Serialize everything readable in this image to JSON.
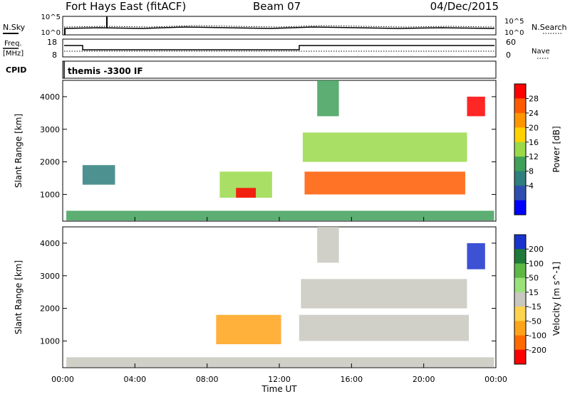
{
  "header": {
    "station": "Fort Hays East (fitACF)",
    "beam": "Beam 07",
    "date": "04/Dec/2015"
  },
  "noise_panel": {
    "left_label": "N.Sky",
    "left_ticks": [
      "10^5",
      "10^0"
    ],
    "right_label": "N.Search",
    "right_ticks": [
      "10^5",
      "10^0"
    ]
  },
  "freq_panel": {
    "left_label_line1": "Freq.",
    "left_label_line2": "[MHz]",
    "left_ticks": [
      "18",
      "8"
    ],
    "right_label": "Nave",
    "right_ticks": [
      "60",
      "0"
    ]
  },
  "cpid_panel": {
    "label": "CPID",
    "value": "themis -3300 IF"
  },
  "power_colorbar": {
    "label": "Power [dB]",
    "ticks": [
      "28",
      "24",
      "20",
      "16",
      "12",
      "8",
      "4"
    ],
    "colors": [
      "#ff0000",
      "#ff5a00",
      "#ff9600",
      "#ffd200",
      "#9ad94a",
      "#3fa05a",
      "#2e7f7d",
      "#2f4fb0",
      "#0000ff"
    ]
  },
  "velocity_colorbar": {
    "label": "Velocity [m s^-1]",
    "ticks": [
      "200",
      "100",
      "50",
      "15",
      "-15",
      "-50",
      "-100",
      "-200"
    ],
    "colors": [
      "#1a33cc",
      "#1f7a3a",
      "#5db845",
      "#9ae27a",
      "#c8c8c0",
      "#ffd34d",
      "#ffa31a",
      "#ff6a00",
      "#ff0000"
    ]
  },
  "axes": {
    "ylabel": "Slant Range [km]",
    "xlabel": "Time UT",
    "yticks": [
      "1000",
      "2000",
      "3000",
      "4000"
    ],
    "xticks": [
      "00:00",
      "04:00",
      "08:00",
      "12:00",
      "16:00",
      "20:00",
      "00:00"
    ]
  },
  "chart_data": [
    {
      "type": "heatmap",
      "title": "Power",
      "xlabel": "Time UT",
      "ylabel": "Slant Range [km]",
      "x_unit": "hours UT",
      "xlim": [
        0,
        24
      ],
      "ylim": [
        180,
        4500
      ],
      "colorbar": {
        "label": "Power [dB]",
        "range": [
          0,
          30
        ]
      },
      "regions": [
        {
          "x": [
            0.2,
            23.9
          ],
          "y": [
            200,
            500
          ],
          "value": 10
        },
        {
          "x": [
            1.1,
            2.9
          ],
          "y": [
            1300,
            1900
          ],
          "value": 8
        },
        {
          "x": [
            8.7,
            11.6
          ],
          "y": [
            900,
            1700
          ],
          "value": 15
        },
        {
          "x": [
            9.6,
            10.7
          ],
          "y": [
            900,
            1200
          ],
          "value": 27
        },
        {
          "x": [
            13.4,
            22.3
          ],
          "y": [
            1000,
            1700
          ],
          "value": 26
        },
        {
          "x": [
            13.3,
            22.4
          ],
          "y": [
            2000,
            2900
          ],
          "value": 14
        },
        {
          "x": [
            14.1,
            15.3
          ],
          "y": [
            3400,
            4500
          ],
          "value": 12
        },
        {
          "x": [
            22.4,
            23.4
          ],
          "y": [
            3400,
            4000
          ],
          "value": 28
        }
      ]
    },
    {
      "type": "heatmap",
      "title": "Velocity",
      "xlabel": "Time UT",
      "ylabel": "Slant Range [km]",
      "x_unit": "hours UT",
      "xlim": [
        0,
        24
      ],
      "ylim": [
        180,
        4500
      ],
      "colorbar": {
        "label": "Velocity [m s^-1]",
        "range": [
          -200,
          200
        ]
      },
      "regions": [
        {
          "x": [
            0.2,
            23.9
          ],
          "y": [
            200,
            500
          ],
          "value": 20
        },
        {
          "x": [
            8.5,
            12.1
          ],
          "y": [
            900,
            1800
          ],
          "value": -70
        },
        {
          "x": [
            13.1,
            22.5
          ],
          "y": [
            1000,
            1800
          ],
          "value": 0
        },
        {
          "x": [
            13.2,
            22.4
          ],
          "y": [
            2000,
            2900
          ],
          "value": 0
        },
        {
          "x": [
            14.1,
            15.3
          ],
          "y": [
            3400,
            4500
          ],
          "value": 0
        },
        {
          "x": [
            22.4,
            23.4
          ],
          "y": [
            3200,
            4000
          ],
          "value": 200
        }
      ]
    }
  ]
}
